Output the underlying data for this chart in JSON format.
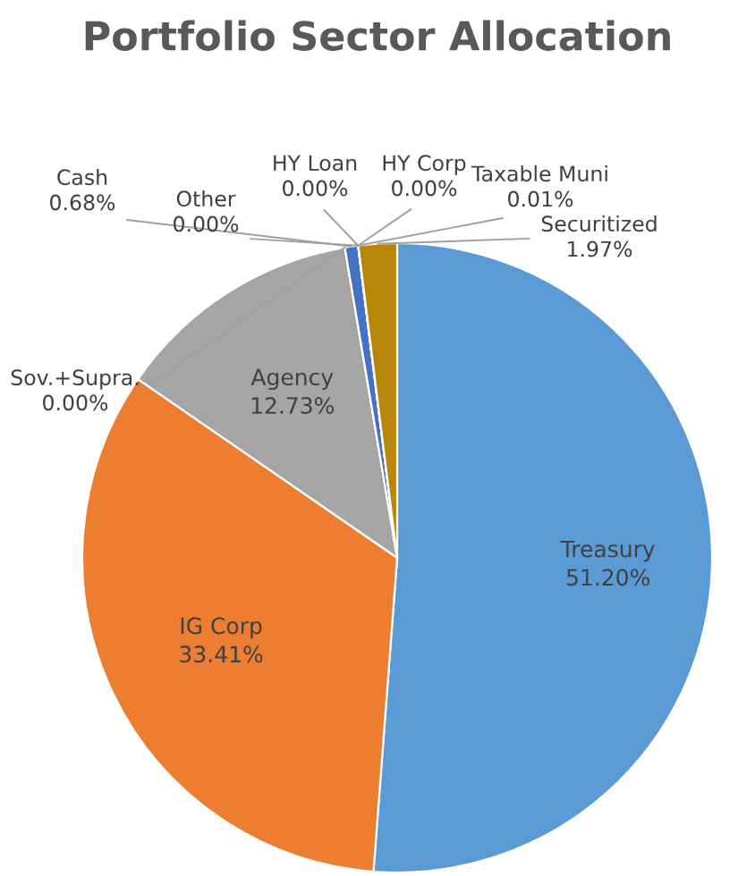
{
  "chart_data": {
    "type": "pie",
    "title": "Portfolio Sector Allocation",
    "categories": [
      "Treasury",
      "IG Corp",
      "Agency",
      "Sov.+Supra.",
      "Cash",
      "Other",
      "HY Loan",
      "HY Corp",
      "Taxable Muni",
      "Securitized"
    ],
    "values": [
      51.2,
      33.41,
      12.73,
      0.0,
      0.68,
      0.0,
      0.0,
      0.0,
      0.01,
      1.97
    ],
    "colors": [
      "#5b9bd5",
      "#ed7d31",
      "#a5a5a5",
      "#ffc000",
      "#4472c4",
      "#70ad47",
      "#264478",
      "#9e480e",
      "#636363",
      "#b8860b"
    ],
    "value_labels": [
      "51.20%",
      "33.41%",
      "12.73%",
      "0.00%",
      "0.68%",
      "0.00%",
      "0.00%",
      "0.00%",
      "0.01%",
      "1.97%"
    ],
    "legend": false
  }
}
